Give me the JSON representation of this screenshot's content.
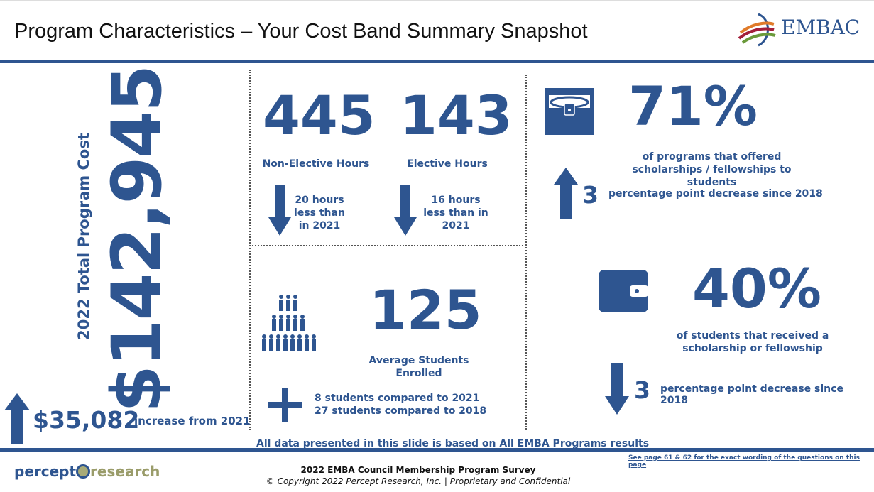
{
  "header": {
    "title": "Program Characteristics – Your Cost Band Summary Snapshot",
    "logo": "EMBAC"
  },
  "cost": {
    "label": "2022 Total Program Cost",
    "value": "$142,945",
    "change_value": "$35,082",
    "change_text": "increase from 2021"
  },
  "hours": {
    "non_elective": {
      "value": "445",
      "label": "Non-Elective Hours",
      "change": "20 hours less than in 2021"
    },
    "elective": {
      "value": "143",
      "label": "Elective Hours",
      "change": "16 hours less than in 2021"
    }
  },
  "students": {
    "value": "125",
    "label": "Average Students Enrolled",
    "change_1": "8 students compared to 2021",
    "change_2": "27 students compared to 2018"
  },
  "scholarship_programs": {
    "value": "71%",
    "label": "of programs that offered scholarships / fellowships to students",
    "change_value": "3",
    "change_text": "percentage point decrease since 2018"
  },
  "scholarship_students": {
    "value": "40%",
    "label": "of students that received a scholarship or fellowship",
    "change_value": "3",
    "change_text": "percentage point decrease since 2018"
  },
  "note": "All data presented in this slide is based on All EMBA Programs results",
  "footer": {
    "link": "See page 61 & 62 for the exact wording of the questions on this page",
    "survey": "2022 EMBA Council Membership Program Survey",
    "copyright": "© Copyright 2022 Percept Research, Inc. | Proprietary and Confidential",
    "logo_left": "percept",
    "logo_right": "research"
  },
  "colors": {
    "primary": "#2e5590"
  }
}
